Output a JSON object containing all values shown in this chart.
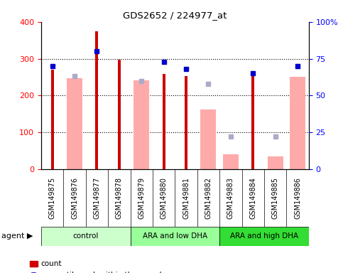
{
  "title": "GDS2652 / 224977_at",
  "samples": [
    "GSM149875",
    "GSM149876",
    "GSM149877",
    "GSM149878",
    "GSM149879",
    "GSM149880",
    "GSM149881",
    "GSM149882",
    "GSM149883",
    "GSM149884",
    "GSM149885",
    "GSM149886"
  ],
  "groups": [
    {
      "label": "control",
      "color": "#ccffcc",
      "start": 0,
      "end": 4
    },
    {
      "label": "ARA and low DHA",
      "color": "#99ff99",
      "start": 4,
      "end": 8
    },
    {
      "label": "ARA and high DHA",
      "color": "#33dd33",
      "start": 8,
      "end": 12
    }
  ],
  "count_values": [
    270,
    null,
    375,
    297,
    null,
    258,
    252,
    null,
    null,
    258,
    null,
    null
  ],
  "percentile_values": [
    70,
    null,
    80,
    null,
    null,
    73,
    68,
    null,
    null,
    65,
    null,
    70
  ],
  "absent_value_bars": [
    null,
    248,
    null,
    null,
    242,
    null,
    null,
    162,
    null,
    null,
    null,
    250
  ],
  "absent_rank_markers": [
    null,
    63,
    null,
    null,
    60,
    null,
    null,
    58,
    22,
    null,
    22,
    70
  ],
  "absent_small_bars": [
    null,
    null,
    null,
    null,
    null,
    null,
    null,
    null,
    40,
    null,
    35,
    null
  ],
  "ylim_left": [
    0,
    400
  ],
  "ylim_right": [
    0,
    100
  ],
  "yticks_left": [
    0,
    100,
    200,
    300,
    400
  ],
  "yticks_right": [
    0,
    25,
    50,
    75,
    100
  ],
  "yticklabels_right": [
    "0",
    "25",
    "50",
    "75",
    "100%"
  ],
  "grid_lines": [
    100,
    200,
    300
  ],
  "count_color": "#cc0000",
  "percentile_color": "#0000cc",
  "absent_value_color": "#ffaaaa",
  "absent_rank_color": "#aaaacc",
  "bg_color": "#d0d0d0",
  "figsize": [
    4.83,
    3.84
  ],
  "dpi": 100
}
